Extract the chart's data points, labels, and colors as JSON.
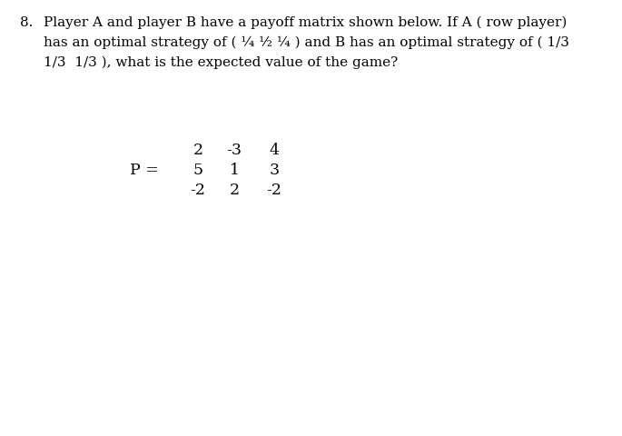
{
  "question_number": "8.",
  "question_text_line1": "Player A and player B have a payoff matrix shown below. If A ( row player)",
  "question_text_line2": "has an optimal strategy of ( ¼ ½ ¼ ) and B has an optimal strategy of ( 1/3",
  "question_text_line3": "1/3  1/3 ), what is the expected value of the game?",
  "matrix_label": "P =",
  "matrix": [
    [
      "2",
      "-3",
      "4"
    ],
    [
      "5",
      "1",
      "3"
    ],
    [
      "-2",
      "2",
      "-2"
    ]
  ],
  "background_color": "#ffffff",
  "text_color": "#000000",
  "font_size_question": 11.0,
  "font_size_matrix": 12.5,
  "font_family": "DejaVu Serif"
}
